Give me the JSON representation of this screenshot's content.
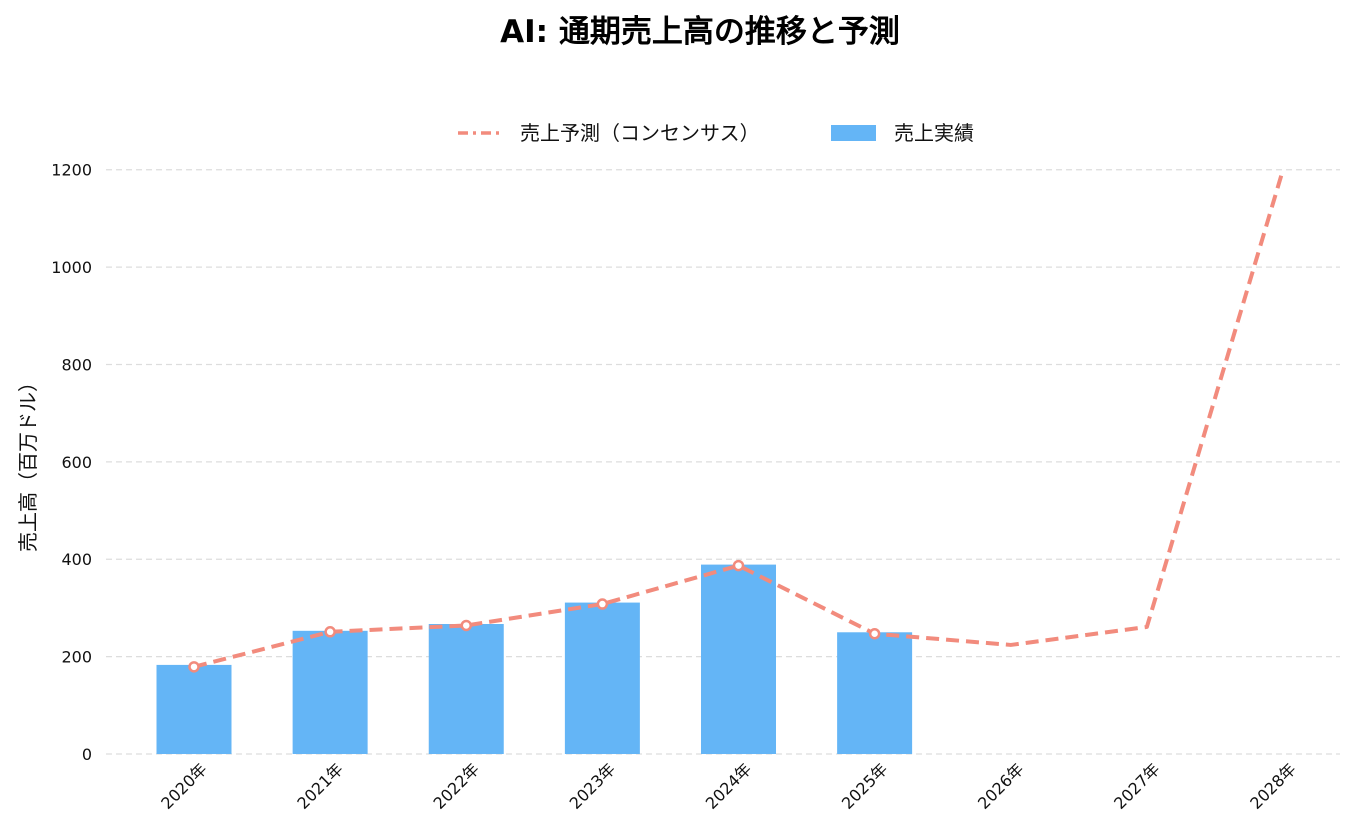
{
  "chart_data": {
    "type": "bar",
    "title": "AI: 通期売上高の推移と予測",
    "ylabel": "売上高（百万ドル）",
    "xlabel": "",
    "categories": [
      "2020年",
      "2021年",
      "2022年",
      "2023年",
      "2024年",
      "2025年",
      "2026年",
      "2027年",
      "2028年"
    ],
    "ylim": [
      0,
      1220
    ],
    "yticks": [
      0,
      200,
      400,
      600,
      800,
      1000,
      1200
    ],
    "grid": true,
    "legend_position": "top-center",
    "series": [
      {
        "name": "売上予測（コンセンサス）",
        "type": "line",
        "style": "dashed",
        "color": "#f28b7d",
        "values": [
          179,
          251,
          264,
          308,
          387,
          247,
          224,
          261,
          1200
        ]
      },
      {
        "name": "売上実績",
        "type": "bar",
        "color": "#64b5f6",
        "values": [
          183,
          253,
          267,
          311,
          389,
          250,
          null,
          null,
          null
        ]
      }
    ]
  }
}
